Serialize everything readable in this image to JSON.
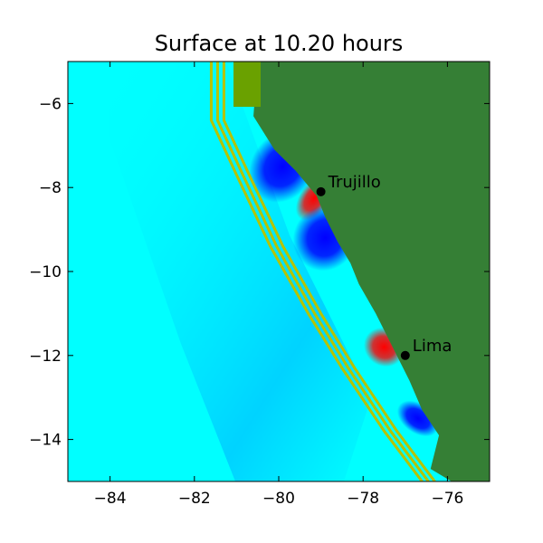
{
  "title": "Surface at 10.20 hours",
  "colors": {
    "ocean": "#00ffff",
    "deep_ocean": "#00c8ff",
    "land": "#357f35",
    "land_light": "#6aa100",
    "contour": "#b6c300",
    "wave_low": "#0000ff",
    "wave_high": "#ff0000"
  },
  "axes": {
    "xlim": [
      -85,
      -75
    ],
    "ylim": [
      -15,
      -5
    ],
    "x_ticks": [
      {
        "value": -84,
        "label": "−84"
      },
      {
        "value": -82,
        "label": "−82"
      },
      {
        "value": -80,
        "label": "−80"
      },
      {
        "value": -78,
        "label": "−78"
      },
      {
        "value": -76,
        "label": "−76"
      }
    ],
    "y_ticks": [
      {
        "value": -6,
        "label": "−6"
      },
      {
        "value": -8,
        "label": "−8"
      },
      {
        "value": -10,
        "label": "−10"
      },
      {
        "value": -12,
        "label": "−12"
      },
      {
        "value": -14,
        "label": "−14"
      }
    ]
  },
  "cities": [
    {
      "name": "Trujillo",
      "lon": -79.0,
      "lat": -8.1
    },
    {
      "name": "Lima",
      "lon": -77.0,
      "lat": -12.0
    }
  ],
  "coastline": [
    [
      -80.5,
      -5.0
    ],
    [
      -80.6,
      -6.3
    ],
    [
      -80.1,
      -7.1
    ],
    [
      -79.6,
      -7.6
    ],
    [
      -79.1,
      -8.2
    ],
    [
      -78.9,
      -8.7
    ],
    [
      -78.6,
      -9.3
    ],
    [
      -78.3,
      -9.8
    ],
    [
      -78.1,
      -10.3
    ],
    [
      -77.7,
      -11.0
    ],
    [
      -77.3,
      -11.8
    ],
    [
      -76.9,
      -12.6
    ],
    [
      -76.6,
      -13.3
    ],
    [
      -76.2,
      -13.9
    ],
    [
      -76.4,
      -14.7
    ],
    [
      -75.9,
      -15.0
    ]
  ],
  "contours": [
    [
      [
        -81.6,
        -5.0
      ],
      [
        -81.6,
        -6.4
      ],
      [
        -81.0,
        -7.7
      ],
      [
        -80.2,
        -9.4
      ],
      [
        -79.3,
        -11.0
      ],
      [
        -78.5,
        -12.3
      ],
      [
        -77.5,
        -13.8
      ],
      [
        -76.6,
        -15.0
      ]
    ],
    [
      [
        -81.45,
        -5.0
      ],
      [
        -81.45,
        -6.4
      ],
      [
        -80.85,
        -7.7
      ],
      [
        -80.05,
        -9.4
      ],
      [
        -79.15,
        -11.0
      ],
      [
        -78.35,
        -12.3
      ],
      [
        -77.35,
        -13.8
      ],
      [
        -76.45,
        -15.0
      ]
    ],
    [
      [
        -81.3,
        -5.0
      ],
      [
        -81.3,
        -6.4
      ],
      [
        -80.7,
        -7.7
      ],
      [
        -79.9,
        -9.4
      ],
      [
        -79.0,
        -11.0
      ],
      [
        -78.2,
        -12.3
      ],
      [
        -77.2,
        -13.8
      ],
      [
        -76.3,
        -15.0
      ]
    ]
  ],
  "wave_blobs": [
    {
      "lon": -79.9,
      "lat": -7.5,
      "rx": 0.9,
      "ry": 0.75,
      "kind": "low"
    },
    {
      "lon": -79.15,
      "lat": -8.25,
      "rx": 0.6,
      "ry": 0.35,
      "kind": "high"
    },
    {
      "lon": -78.9,
      "lat": -9.2,
      "rx": 0.8,
      "ry": 0.75,
      "kind": "low"
    },
    {
      "lon": -77.5,
      "lat": -11.8,
      "rx": 0.45,
      "ry": 0.5,
      "kind": "high"
    },
    {
      "lon": -76.7,
      "lat": -13.5,
      "rx": 0.35,
      "ry": 0.55,
      "kind": "low"
    }
  ]
}
